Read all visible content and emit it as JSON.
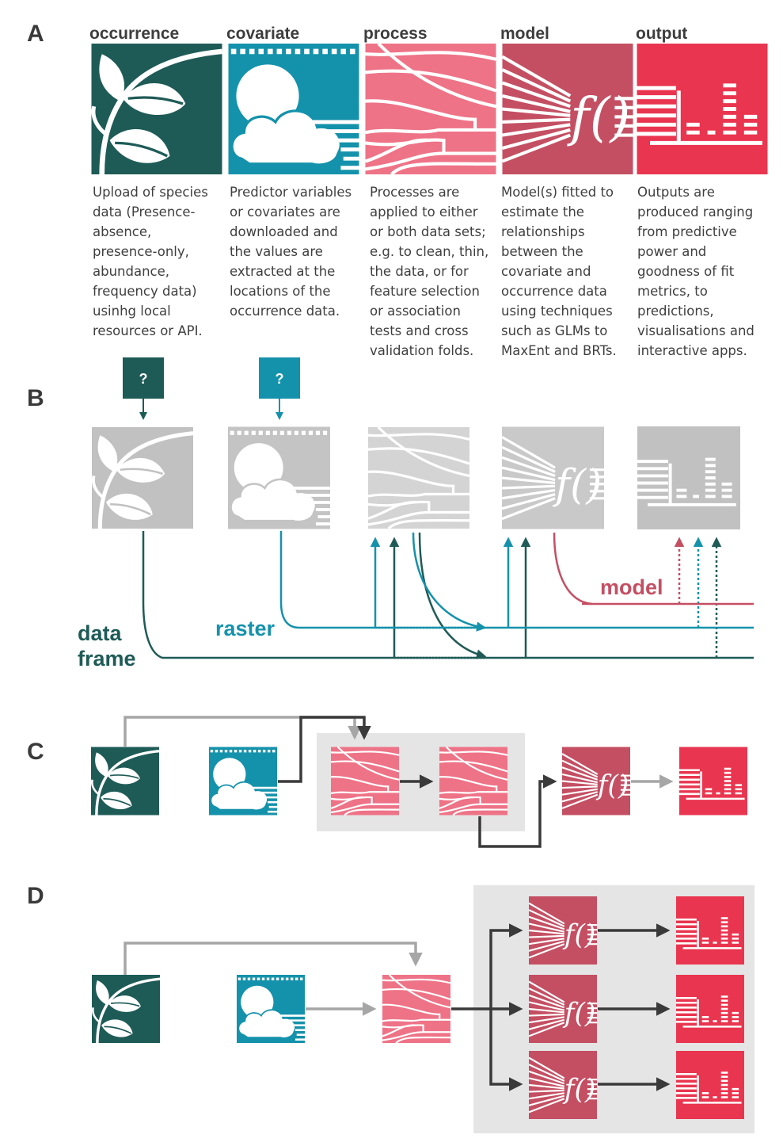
{
  "colors": {
    "occurrence": "#1e5b57",
    "covariate": "#1592ab",
    "process": "#ee7387",
    "model": "#c44f63",
    "output": "#e9354f",
    "grey_icon": "#c1c1c1",
    "grey_panel": "#e5e5e5",
    "arrow_dark": "#3a3a3a",
    "arrow_light": "#a6a6a6"
  },
  "icons": {
    "occurrence": "plant-leaves-icon",
    "covariate": "sun-cloud-icon",
    "process": "flowing-lines-icon",
    "model": "function-fx-icon",
    "output": "bar-chart-icon"
  },
  "panel_a": {
    "letter": "A",
    "modules": [
      {
        "title": "occurrence",
        "description": [
          "Upload of species",
          "data (Presence-",
          "absence,",
          "presence-only,",
          "abundance,",
          "frequency data)",
          "usinhg local",
          "resources or API."
        ]
      },
      {
        "title": "covariate",
        "description": [
          "Predictor variables",
          "or covariates are",
          "downloaded and",
          "the values are",
          "extracted at the",
          "locations of the",
          "occurrence data."
        ]
      },
      {
        "title": "process",
        "description": [
          "Processes are",
          "applied to either",
          "or both data sets;",
          "e.g. to clean, thin,",
          "the data, or for",
          "feature selection",
          "or association",
          "tests and cross",
          "validation folds."
        ]
      },
      {
        "title": "model",
        "description": [
          "Model(s) fitted to",
          "estimate the",
          "relationships",
          "between the",
          "covariate and",
          "occurrence data",
          "using techniques",
          "such as GLMs to",
          "MaxEnt and BRTs."
        ]
      },
      {
        "title": "output",
        "description": [
          "Outputs are",
          "produced ranging",
          "from predictive",
          "power and",
          "goodness of fit",
          "metrics, to",
          "predictions,",
          "visualisations and",
          "interactive apps."
        ]
      }
    ]
  },
  "panel_b": {
    "letter": "B",
    "question_mark": "?",
    "labels": {
      "data_frame": [
        "data",
        "frame"
      ],
      "raster": "raster",
      "model": "model"
    }
  },
  "panel_c": {
    "letter": "C"
  },
  "panel_d": {
    "letter": "D"
  },
  "function_text": "f()"
}
